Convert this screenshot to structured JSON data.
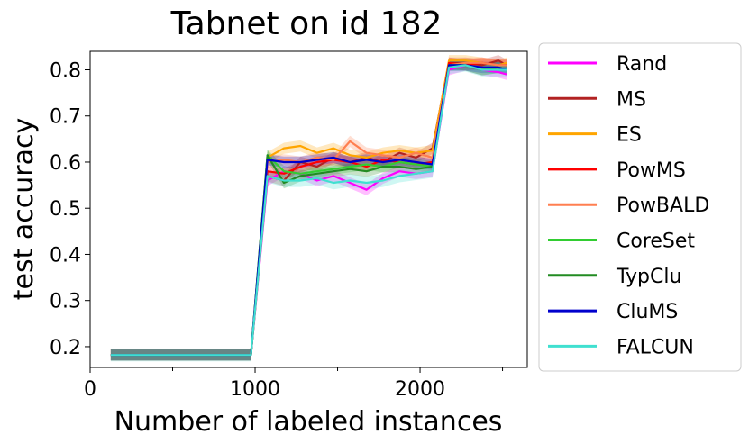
{
  "chart_data": {
    "type": "line",
    "title": "Tabnet on id 182",
    "xlabel": "Number of labeled instances",
    "ylabel": "test accuracy",
    "xlim": [
      0,
      2650
    ],
    "ylim": [
      0.155,
      0.84
    ],
    "xticks": [
      0,
      1000,
      2000
    ],
    "xtick_labels": [
      "0",
      "1000",
      "2000"
    ],
    "xminor_ticks": [
      500,
      1500,
      2500
    ],
    "yticks": [
      0.2,
      0.3,
      0.4,
      0.5,
      0.6,
      0.7,
      0.8
    ],
    "ytick_labels": [
      "0.2",
      "0.3",
      "0.4",
      "0.5",
      "0.6",
      "0.7",
      "0.8"
    ],
    "grid": false,
    "legend_position": "outside-right",
    "x": [
      125,
      975,
      1075,
      1175,
      1275,
      1375,
      1475,
      1575,
      1675,
      1775,
      1875,
      1975,
      2075,
      2175,
      2275,
      2375,
      2475,
      2525
    ],
    "series": [
      {
        "name": "Rand",
        "color": "#ff00ff",
        "band": 0.012,
        "values": [
          0.182,
          0.182,
          0.56,
          0.58,
          0.575,
          0.56,
          0.57,
          0.555,
          0.54,
          0.565,
          0.58,
          0.575,
          0.58,
          0.8,
          0.81,
          0.8,
          0.795,
          0.79
        ]
      },
      {
        "name": "MS",
        "color": "#b22222",
        "band": 0.012,
        "values": [
          0.182,
          0.182,
          0.57,
          0.56,
          0.6,
          0.59,
          0.61,
          0.6,
          0.61,
          0.6,
          0.62,
          0.61,
          0.63,
          0.815,
          0.815,
          0.81,
          0.82,
          0.81
        ]
      },
      {
        "name": "ES",
        "color": "#ffa500",
        "band": 0.012,
        "values": [
          0.182,
          0.182,
          0.61,
          0.63,
          0.635,
          0.62,
          0.63,
          0.615,
          0.61,
          0.62,
          0.625,
          0.62,
          0.625,
          0.82,
          0.82,
          0.815,
          0.81,
          0.815
        ]
      },
      {
        "name": "PowMS",
        "color": "#ff0000",
        "band": 0.012,
        "values": [
          0.182,
          0.182,
          0.58,
          0.575,
          0.59,
          0.6,
          0.605,
          0.6,
          0.59,
          0.605,
          0.6,
          0.595,
          0.6,
          0.815,
          0.81,
          0.815,
          0.81,
          0.81
        ]
      },
      {
        "name": "PowBALD",
        "color": "#ff7f50",
        "band": 0.012,
        "values": [
          0.182,
          0.182,
          0.6,
          0.605,
          0.6,
          0.61,
          0.605,
          0.645,
          0.62,
          0.615,
          0.61,
          0.62,
          0.61,
          0.81,
          0.815,
          0.815,
          0.81,
          0.81
        ]
      },
      {
        "name": "CoreSet",
        "color": "#32cd32",
        "band": 0.012,
        "values": [
          0.182,
          0.182,
          0.615,
          0.58,
          0.575,
          0.58,
          0.585,
          0.59,
          0.595,
          0.59,
          0.6,
          0.595,
          0.59,
          0.81,
          0.81,
          0.8,
          0.805,
          0.8
        ]
      },
      {
        "name": "TypClu",
        "color": "#228b22",
        "band": 0.012,
        "values": [
          0.182,
          0.182,
          0.615,
          0.555,
          0.57,
          0.575,
          0.58,
          0.585,
          0.58,
          0.59,
          0.59,
          0.585,
          0.59,
          0.81,
          0.81,
          0.8,
          0.805,
          0.8
        ]
      },
      {
        "name": "CluMS",
        "color": "#0000cd",
        "band": 0.012,
        "values": [
          0.182,
          0.182,
          0.605,
          0.6,
          0.6,
          0.605,
          0.61,
          0.6,
          0.605,
          0.6,
          0.605,
          0.6,
          0.595,
          0.81,
          0.81,
          0.805,
          0.805,
          0.8
        ]
      },
      {
        "name": "FALCUN",
        "color": "#40e0d0",
        "band": 0.014,
        "values": [
          0.182,
          0.182,
          0.57,
          0.56,
          0.56,
          0.565,
          0.555,
          0.56,
          0.555,
          0.56,
          0.57,
          0.575,
          0.58,
          0.805,
          0.81,
          0.8,
          0.8,
          0.8
        ]
      }
    ]
  }
}
